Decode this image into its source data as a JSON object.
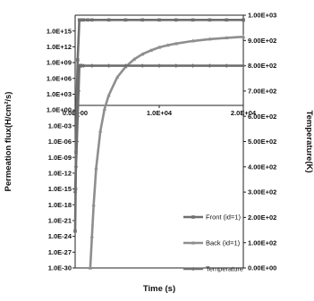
{
  "chart_data": {
    "type": "line",
    "xlabel": "Time (s)",
    "ylabel_left": "Permeation flux(H/cm²/s)",
    "ylabel_right": "Temperature(K)",
    "x_axis": {
      "min": 0,
      "max": 20000,
      "tick_labels": [
        {
          "value": 0,
          "label": "0.0E+00"
        },
        {
          "value": 10000,
          "label": "1.0E+04"
        },
        {
          "value": 20000,
          "label": "2.0E+04"
        }
      ]
    },
    "y_left_axis": {
      "scale": "log",
      "min_exp": -30,
      "max_exp": 18,
      "tick_labels": [
        {
          "exp": 15,
          "label": "1.0E+15"
        },
        {
          "exp": 12,
          "label": "1.0E+12"
        },
        {
          "exp": 9,
          "label": "1.0E+09"
        },
        {
          "exp": 6,
          "label": "1.0E+06"
        },
        {
          "exp": 3,
          "label": "1.0E+03"
        },
        {
          "exp": 0,
          "label": "1.0E+00"
        },
        {
          "exp": -3,
          "label": "1.0E-03"
        },
        {
          "exp": -6,
          "label": "1.0E-06"
        },
        {
          "exp": -9,
          "label": "1.0E-09"
        },
        {
          "exp": -12,
          "label": "1.0E-12"
        },
        {
          "exp": -15,
          "label": "1.0E-15"
        },
        {
          "exp": -18,
          "label": "1.0E-18"
        },
        {
          "exp": -21,
          "label": "1.0E-21"
        },
        {
          "exp": -24,
          "label": "1.0E-24"
        },
        {
          "exp": -27,
          "label": "1.0E-27"
        },
        {
          "exp": -30,
          "label": "1.0E-30"
        }
      ]
    },
    "y_right_axis": {
      "scale": "linear",
      "min": 0,
      "max": 1000,
      "tick_labels": [
        {
          "value": 1000,
          "label": "1.00E+03"
        },
        {
          "value": 900,
          "label": "9.00E+02"
        },
        {
          "value": 800,
          "label": "8.00E+02"
        },
        {
          "value": 700,
          "label": "7.00E+02"
        },
        {
          "value": 600,
          "label": "6.00E+02"
        },
        {
          "value": 500,
          "label": "5.00E+02"
        },
        {
          "value": 400,
          "label": "4.00E+02"
        },
        {
          "value": 300,
          "label": "3.00E+02"
        },
        {
          "value": 200,
          "label": "2.00E+02"
        },
        {
          "value": 100,
          "label": "1.00E+02"
        },
        {
          "value": 0,
          "label": "0.00E+00"
        }
      ]
    },
    "legend": {
      "placement": "bottom-right",
      "entries": [
        "Front (id=1)",
        "Back  (id=1)",
        "Temperature"
      ]
    },
    "series": [
      {
        "name": "Front (id=1)",
        "axis": "left",
        "color": "#6f6f6f",
        "marker": "square",
        "x": [
          0,
          50,
          100,
          200,
          300,
          500,
          800,
          1000,
          1500,
          2000,
          4000,
          6000,
          8000,
          10000,
          12000,
          14000,
          16000,
          18000,
          20000,
          20800
        ],
        "log10_y": [
          -23,
          -15,
          -8,
          3,
          9.5,
          17.1,
          17.1,
          17.1,
          17.1,
          17.1,
          17.1,
          17.1,
          17.1,
          17.1,
          17.1,
          17.1,
          17.1,
          17.1,
          17.1,
          17.1
        ]
      },
      {
        "name": "Back  (id=1)",
        "axis": "left",
        "color": "#8e8e8e",
        "marker": "triangle",
        "x": [
          1800,
          2000,
          2200,
          2500,
          3000,
          3500,
          4000,
          5000,
          6000,
          7000,
          8000,
          9000,
          10000,
          11000,
          12000,
          14000,
          16000,
          18000,
          20000,
          20800
        ],
        "log10_y": [
          -30,
          -24,
          -18,
          -11,
          -4,
          0.2,
          2.8,
          6.2,
          8.2,
          9.6,
          10.6,
          11.3,
          11.9,
          12.3,
          12.6,
          13.1,
          13.45,
          13.7,
          13.9,
          13.95
        ]
      },
      {
        "name": "Temperature",
        "axis": "right",
        "color": "#6f6f6f",
        "marker": "diamond",
        "x": [
          0,
          100,
          200,
          300,
          400,
          500,
          600,
          700,
          800,
          1000,
          2000,
          4000,
          6000,
          8000,
          10000,
          12000,
          14000,
          16000,
          18000,
          20000,
          20800
        ],
        "y": [
          300,
          400,
          500,
          600,
          700,
          800,
          800,
          800,
          800,
          800,
          800,
          800,
          800,
          800,
          800,
          800,
          800,
          800,
          800,
          800,
          800
        ]
      }
    ],
    "grid": false
  }
}
